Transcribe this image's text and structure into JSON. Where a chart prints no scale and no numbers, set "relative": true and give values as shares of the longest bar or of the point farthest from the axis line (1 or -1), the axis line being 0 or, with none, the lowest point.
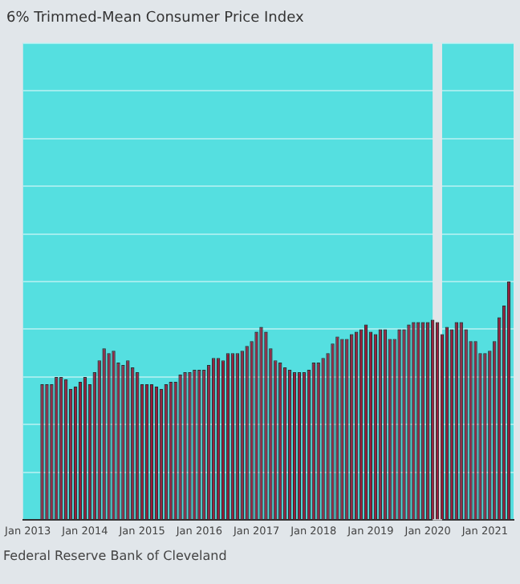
{
  "chart_data": {
    "type": "bar",
    "title": "6% Trimmed-Mean Consumer Price Index",
    "annotations": [
      "Federal Reserve Bank of Cleveland"
    ],
    "relative": true,
    "grid": "y",
    "color": "#9b1c3a",
    "xlim": [
      "2012-12",
      "2021-07"
    ],
    "xticks": [
      {
        "value": "2013-01",
        "label": "Jan 2013"
      },
      {
        "value": "2014-01",
        "label": "Jan 2014"
      },
      {
        "value": "2015-01",
        "label": "Jan 2015"
      },
      {
        "value": "2016-01",
        "label": "Jan 2016"
      },
      {
        "value": "2017-01",
        "label": "Jan 2017"
      },
      {
        "value": "2018-01",
        "label": "Jan 2018"
      },
      {
        "value": "2019-01",
        "label": "Jan 2019"
      },
      {
        "value": "2020-01",
        "label": "Jan 2020"
      },
      {
        "value": "2021-01",
        "label": "Jan 2021"
      }
    ],
    "bands": [
      {
        "axis": "x",
        "from": "2020-02",
        "to": "2020-04",
        "color": "#e1e6ea"
      }
    ],
    "x": [
      "2013-04",
      "2013-05",
      "2013-06",
      "2013-07",
      "2013-08",
      "2013-09",
      "2013-10",
      "2013-11",
      "2013-12",
      "2014-01",
      "2014-02",
      "2014-03",
      "2014-04",
      "2014-05",
      "2014-06",
      "2014-07",
      "2014-08",
      "2014-09",
      "2014-10",
      "2014-11",
      "2014-12",
      "2015-01",
      "2015-02",
      "2015-03",
      "2015-04",
      "2015-05",
      "2015-06",
      "2015-07",
      "2015-08",
      "2015-09",
      "2015-10",
      "2015-11",
      "2015-12",
      "2016-01",
      "2016-02",
      "2016-03",
      "2016-04",
      "2016-05",
      "2016-06",
      "2016-07",
      "2016-08",
      "2016-09",
      "2016-10",
      "2016-11",
      "2016-12",
      "2017-01",
      "2017-02",
      "2017-03",
      "2017-04",
      "2017-05",
      "2017-06",
      "2017-07",
      "2017-08",
      "2017-09",
      "2017-10",
      "2017-11",
      "2017-12",
      "2018-01",
      "2018-02",
      "2018-03",
      "2018-04",
      "2018-05",
      "2018-06",
      "2018-07",
      "2018-08",
      "2018-09",
      "2018-10",
      "2018-11",
      "2018-12",
      "2019-01",
      "2019-02",
      "2019-03",
      "2019-04",
      "2019-05",
      "2019-06",
      "2019-07",
      "2019-08",
      "2019-09",
      "2019-10",
      "2019-11",
      "2019-12",
      "2020-01",
      "2020-02",
      "2020-03",
      "2020-04",
      "2020-05",
      "2020-06",
      "2020-07",
      "2020-08",
      "2020-09",
      "2020-10",
      "2020-11",
      "2020-12",
      "2021-01",
      "2021-02",
      "2021-03",
      "2021-04",
      "2021-05",
      "2021-06"
    ],
    "values": [
      0.57,
      0.57,
      0.57,
      0.6,
      0.6,
      0.59,
      0.55,
      0.56,
      0.58,
      0.6,
      0.57,
      0.62,
      0.67,
      0.72,
      0.7,
      0.71,
      0.66,
      0.65,
      0.67,
      0.64,
      0.62,
      0.57,
      0.57,
      0.57,
      0.56,
      0.55,
      0.57,
      0.58,
      0.58,
      0.61,
      0.62,
      0.62,
      0.63,
      0.63,
      0.63,
      0.65,
      0.68,
      0.68,
      0.67,
      0.7,
      0.7,
      0.7,
      0.71,
      0.73,
      0.75,
      0.79,
      0.81,
      0.79,
      0.72,
      0.67,
      0.66,
      0.64,
      0.63,
      0.62,
      0.62,
      0.62,
      0.63,
      0.66,
      0.66,
      0.68,
      0.7,
      0.74,
      0.77,
      0.76,
      0.76,
      0.78,
      0.79,
      0.8,
      0.82,
      0.79,
      0.78,
      0.8,
      0.8,
      0.76,
      0.76,
      0.8,
      0.8,
      0.82,
      0.83,
      0.83,
      0.83,
      0.83,
      0.84,
      0.83,
      0.78,
      0.81,
      0.8,
      0.83,
      0.83,
      0.8,
      0.75,
      0.75,
      0.7,
      0.7,
      0.71,
      0.75,
      0.85,
      0.9,
      1
    ]
  }
}
